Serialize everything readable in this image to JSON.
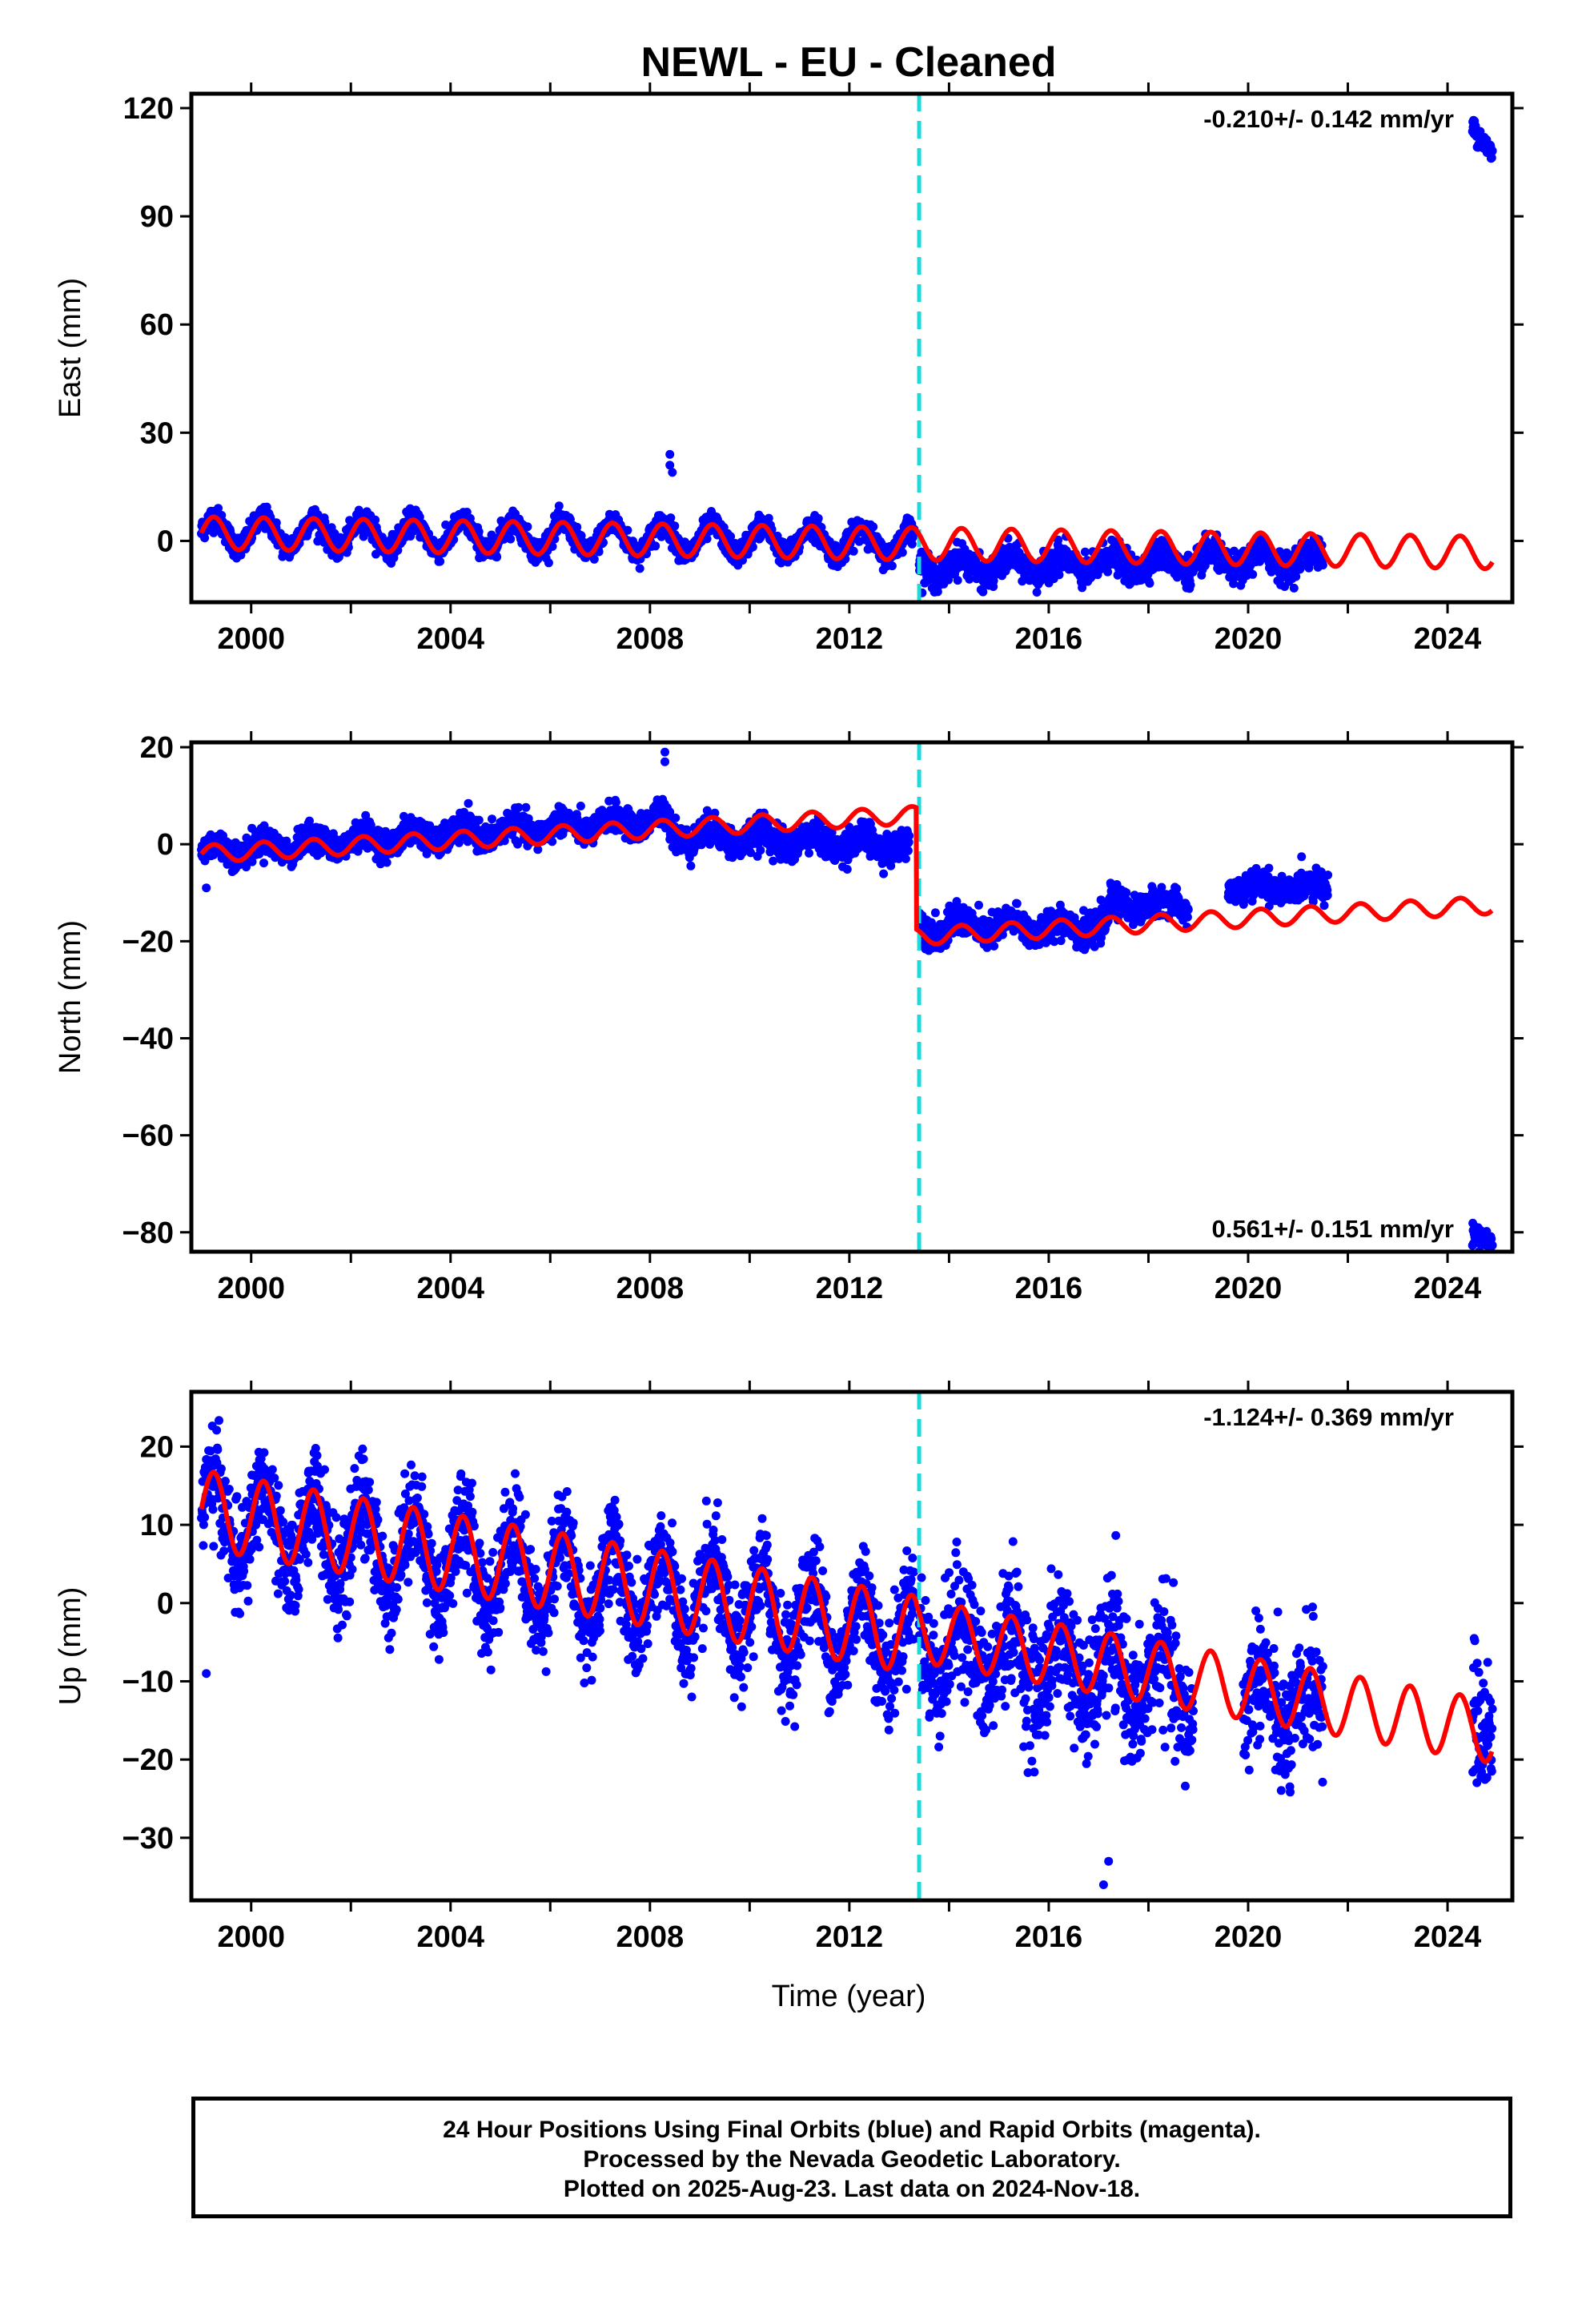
{
  "title": "NEWL  - EU - Cleaned",
  "x_axis": {
    "label": "Time (year)",
    "range": [
      1998.8,
      2025.3
    ],
    "ticks": [
      "2000",
      "2004",
      "2008",
      "2012",
      "2016",
      "2020",
      "2024"
    ],
    "tick_values": [
      2000,
      2004,
      2008,
      2012,
      2016,
      2020,
      2024
    ]
  },
  "offset_line": {
    "year": 2013.4,
    "color": "#1ed9d9",
    "style": "dashed"
  },
  "colors": {
    "data": "#0000ff",
    "model": "#ff0000",
    "offset": "#1ed9d9",
    "frame": "#000000"
  },
  "caption": [
    "24 Hour Positions Using Final Orbits (blue) and Rapid Orbits (magenta).",
    "Processed by the Nevada Geodetic Laboratory.",
    "Plotted on 2025-Aug-23. Last data on 2024-Nov-18."
  ],
  "chart_data": [
    {
      "type": "scatter",
      "ylabel": "East (mm)",
      "ylim": [
        -17,
        124
      ],
      "yticks": [
        0,
        30,
        60,
        90,
        120
      ],
      "rate_label": "-0.210+/- 0.142 mm/yr",
      "rate_position": "top-right",
      "series": [
        {
          "kind": "observations",
          "color": "#0000ff",
          "segments": [
            {
              "x_start": 1999.0,
              "x_end": 2013.3,
              "offset": 2.5,
              "slope": -0.2,
              "amplitude": 4,
              "noise": 1.6
            },
            {
              "x_start": 2013.4,
              "x_end": 2021.5,
              "offset": -7.5,
              "slope": 0.3,
              "amplitude": 2.5,
              "noise": 2.0
            },
            {
              "x_start": 2024.5,
              "x_end": 2024.9,
              "offset": 115,
              "slope": -20,
              "amplitude": 0,
              "noise": 1.5
            }
          ],
          "outliers": [
            [
              2008.4,
              24
            ],
            [
              2008.4,
              21
            ],
            [
              2008.45,
              19
            ]
          ]
        },
        {
          "kind": "model",
          "color": "#ff0000",
          "segments": [
            {
              "x_start": 1999.0,
              "x_end": 2024.9,
              "offset": 2.2,
              "slope": -0.21,
              "amplitude": 4.5
            }
          ]
        }
      ]
    },
    {
      "type": "scatter",
      "ylabel": "North (mm)",
      "ylim": [
        -84,
        21
      ],
      "yticks": [
        -80,
        -60,
        -40,
        -20,
        0,
        20
      ],
      "rate_label": "0.561+/- 0.151 mm/yr",
      "rate_position": "bottom-right",
      "series": [
        {
          "kind": "observations",
          "color": "#0000ff",
          "segments": [
            {
              "x_start": 1999.0,
              "x_end": 2008.4,
              "offset": -1.5,
              "slope": 0.7,
              "amplitude": 1.5,
              "noise": 1.4
            },
            {
              "x_start": 2008.4,
              "x_end": 2013.2,
              "offset": 2.0,
              "slope": -0.5,
              "amplitude": 1.5,
              "noise": 1.6
            },
            {
              "x_start": 2013.4,
              "x_end": 2017.2,
              "offset": -17.0,
              "slope": 0.0,
              "amplitude": 1.5,
              "noise": 1.6
            },
            {
              "x_start": 2017.2,
              "x_end": 2018.8,
              "offset": -12.5,
              "slope": 0.0,
              "amplitude": 1.2,
              "noise": 1.4
            },
            {
              "x_start": 2019.6,
              "x_end": 2021.6,
              "offset": -9.0,
              "slope": 0.0,
              "amplitude": 1.0,
              "noise": 1.4
            },
            {
              "x_start": 2024.5,
              "x_end": 2024.9,
              "offset": -80,
              "slope": -5,
              "amplitude": 0,
              "noise": 1.2
            }
          ],
          "outliers": [
            [
              2008.3,
              19
            ],
            [
              2008.3,
              17
            ],
            [
              1999.1,
              -9
            ]
          ]
        },
        {
          "kind": "model",
          "color": "#ff0000",
          "segments": [
            {
              "x_start": 1999.0,
              "x_end": 2013.35,
              "offset": -2.0,
              "slope": 0.56,
              "amplitude": 1.8
            },
            {
              "x_start": 2013.35,
              "x_end": 2024.9,
              "offset": -19.0,
              "slope": 0.56,
              "amplitude": 1.8
            }
          ]
        }
      ]
    },
    {
      "type": "scatter",
      "ylabel": "Up (mm)",
      "ylim": [
        -38,
        27
      ],
      "yticks": [
        -30,
        -20,
        -10,
        0,
        10,
        20
      ],
      "rate_label": "-1.124+/- 0.369 mm/yr",
      "rate_position": "top-right",
      "series": [
        {
          "kind": "observations",
          "color": "#0000ff",
          "segments": [
            {
              "x_start": 1999.0,
              "x_end": 2013.3,
              "offset": 11.0,
              "slope": -1.1,
              "amplitude": 5.5,
              "noise": 3.2
            },
            {
              "x_start": 2013.4,
              "x_end": 2018.9,
              "offset": -5.0,
              "slope": -1.1,
              "amplitude": 4.5,
              "noise": 4.0
            },
            {
              "x_start": 2019.9,
              "x_end": 2021.5,
              "offset": -12.5,
              "slope": -1.0,
              "amplitude": 4.0,
              "noise": 4.0
            },
            {
              "x_start": 2024.5,
              "x_end": 2024.9,
              "offset": -13.5,
              "slope": 0,
              "amplitude": 3,
              "noise": 4
            }
          ],
          "outliers": [
            [
              2017.1,
              -36
            ],
            [
              2017.2,
              -33
            ],
            [
              1999.1,
              -9
            ]
          ]
        },
        {
          "kind": "model",
          "color": "#ff0000",
          "segments": [
            {
              "x_start": 1999.0,
              "x_end": 2013.35,
              "offset": 12.0,
              "slope": -1.12,
              "amplitude": 5.0
            },
            {
              "x_start": 2013.35,
              "x_end": 2024.9,
              "offset": -3.5,
              "slope": -1.12,
              "amplitude": 4.0
            }
          ]
        }
      ]
    }
  ]
}
